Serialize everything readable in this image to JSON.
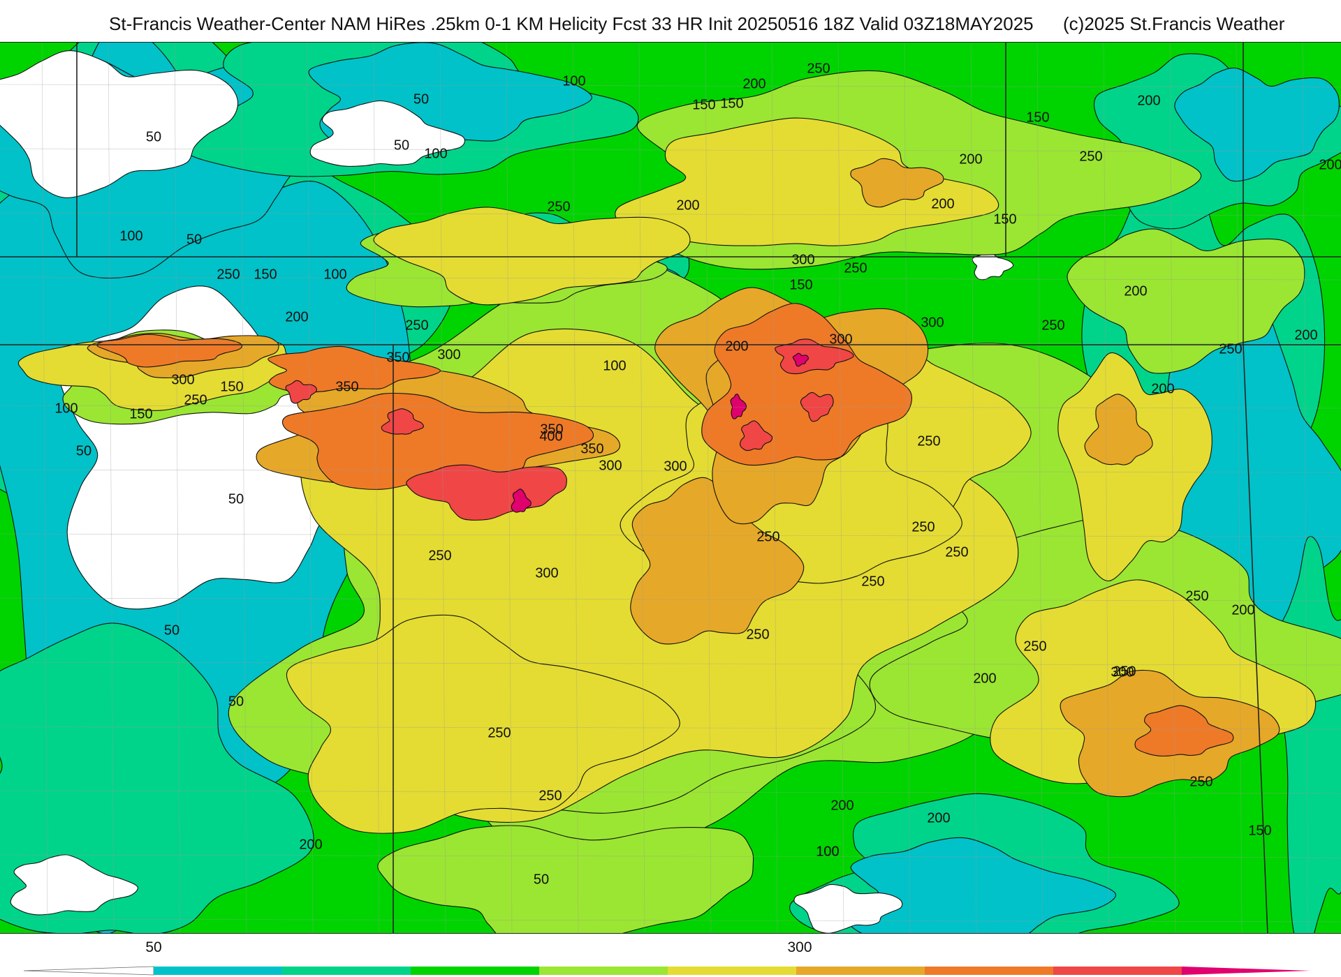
{
  "header": {
    "title": "St-Francis Weather-Center NAM HiRes .25km 0-1 KM Helicity Fcst 33 HR Init 20250516 18Z  Valid 03Z18MAY2025",
    "copyright": "(c)2025 St.Francis Weather"
  },
  "colors": {
    "c0": "#ffffff",
    "c50": "#00c2c8",
    "c100": "#00d48a",
    "c150": "#00d400",
    "c200": "#9be632",
    "c250": "#e4dc32",
    "c300": "#e6a828",
    "c350": "#ee7a28",
    "c400": "#f04646",
    "c450": "#e0006e",
    "contour": "#111111",
    "state_line": "#222222",
    "county_line": "#9a9a9a"
  },
  "legend": {
    "tick_labels": [
      "50",
      "300"
    ],
    "levels": [
      50,
      100,
      150,
      200,
      250,
      300,
      350,
      400,
      450
    ]
  },
  "map": {
    "contour_labels": [
      {
        "text": "250",
        "color_key": "c250"
      },
      {
        "text": "200",
        "color_key": "c200"
      },
      {
        "text": "100",
        "color_key": "c100"
      },
      {
        "text": "150",
        "color_key": "c150"
      },
      {
        "text": "50",
        "color_key": "c50"
      },
      {
        "text": "200",
        "color_key": "c200"
      },
      {
        "text": "150",
        "color_key": "c150"
      },
      {
        "text": "150",
        "color_key": "c150"
      },
      {
        "text": "50",
        "color_key": "c50"
      },
      {
        "text": "100",
        "color_key": "c100"
      },
      {
        "text": "50",
        "color_key": "c50"
      },
      {
        "text": "200",
        "color_key": "c200"
      },
      {
        "text": "250",
        "color_key": "c250"
      },
      {
        "text": "200",
        "color_key": "c200"
      },
      {
        "text": "200",
        "color_key": "c200"
      },
      {
        "text": "250",
        "color_key": "c250"
      },
      {
        "text": "200",
        "color_key": "c200"
      },
      {
        "text": "150",
        "color_key": "c150"
      },
      {
        "text": "100",
        "color_key": "c100"
      },
      {
        "text": "50",
        "color_key": "c50"
      },
      {
        "text": "300",
        "color_key": "c300"
      },
      {
        "text": "250",
        "color_key": "c250"
      },
      {
        "text": "150",
        "color_key": "c150"
      },
      {
        "text": "250",
        "color_key": "c250"
      },
      {
        "text": "150",
        "color_key": "c150"
      },
      {
        "text": "100",
        "color_key": "c100"
      },
      {
        "text": "200",
        "color_key": "c200"
      },
      {
        "text": "200",
        "color_key": "c200"
      },
      {
        "text": "300",
        "color_key": "c300"
      },
      {
        "text": "250",
        "color_key": "c250"
      },
      {
        "text": "250",
        "color_key": "c250"
      },
      {
        "text": "300",
        "color_key": "c300"
      },
      {
        "text": "250",
        "color_key": "c250"
      },
      {
        "text": "350",
        "color_key": "c350"
      },
      {
        "text": "300",
        "color_key": "c300"
      },
      {
        "text": "350",
        "color_key": "c350"
      },
      {
        "text": "300",
        "color_key": "c300"
      },
      {
        "text": "150",
        "color_key": "c150"
      },
      {
        "text": "100",
        "color_key": "c100"
      },
      {
        "text": "200",
        "color_key": "c200"
      },
      {
        "text": "200",
        "color_key": "c200"
      },
      {
        "text": "150",
        "color_key": "c150"
      },
      {
        "text": "250",
        "color_key": "c250"
      },
      {
        "text": "200",
        "color_key": "c200"
      },
      {
        "text": "100",
        "color_key": "c100"
      },
      {
        "text": "250",
        "color_key": "c250"
      },
      {
        "text": "350",
        "color_key": "c350"
      },
      {
        "text": "400",
        "color_key": "c400"
      },
      {
        "text": "350",
        "color_key": "c350"
      },
      {
        "text": "300",
        "color_key": "c300"
      },
      {
        "text": "300",
        "color_key": "c300"
      },
      {
        "text": "250",
        "color_key": "c250"
      },
      {
        "text": "50",
        "color_key": "c50"
      },
      {
        "text": "50",
        "color_key": "c50"
      },
      {
        "text": "250",
        "color_key": "c250"
      },
      {
        "text": "300",
        "color_key": "c300"
      },
      {
        "text": "250",
        "color_key": "c250"
      },
      {
        "text": "250",
        "color_key": "c250"
      },
      {
        "text": "250",
        "color_key": "c250"
      },
      {
        "text": "250",
        "color_key": "c250"
      },
      {
        "text": "250",
        "color_key": "c250"
      },
      {
        "text": "200",
        "color_key": "c200"
      },
      {
        "text": "50",
        "color_key": "c50"
      },
      {
        "text": "250",
        "color_key": "c250"
      },
      {
        "text": "250",
        "color_key": "c250"
      },
      {
        "text": "300",
        "color_key": "c300"
      },
      {
        "text": "200",
        "color_key": "c200"
      },
      {
        "text": "50",
        "color_key": "c50"
      },
      {
        "text": "250",
        "color_key": "c250"
      },
      {
        "text": "250",
        "color_key": "c250"
      },
      {
        "text": "250",
        "color_key": "c250"
      },
      {
        "text": "200",
        "color_key": "c200"
      },
      {
        "text": "150",
        "color_key": "c150"
      },
      {
        "text": "100",
        "color_key": "c100"
      },
      {
        "text": "200",
        "color_key": "c200"
      },
      {
        "text": "100",
        "color_key": "c100"
      },
      {
        "text": "200",
        "color_key": "c200"
      },
      {
        "text": "50",
        "color_key": "c50"
      }
    ]
  }
}
